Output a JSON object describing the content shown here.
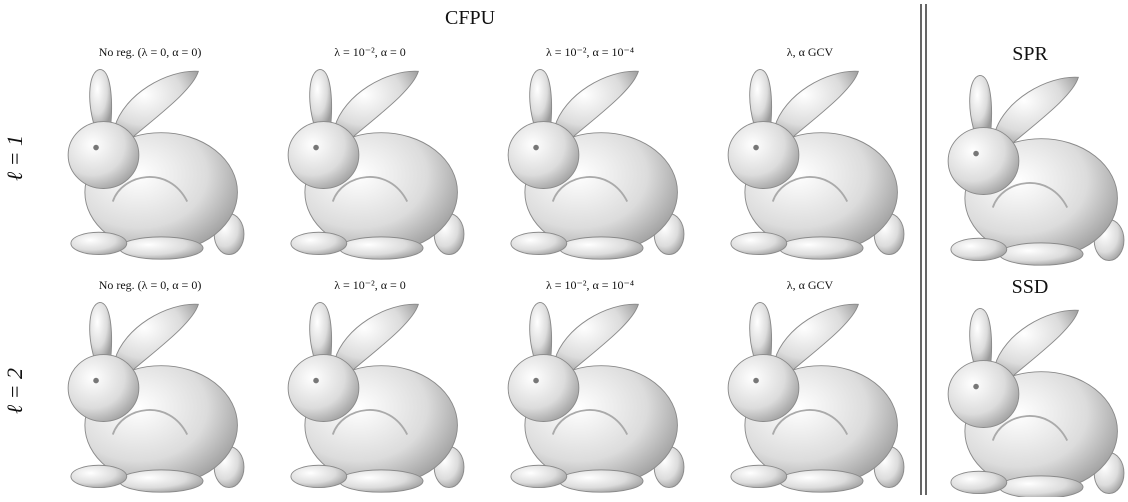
{
  "title": "CFPU",
  "rows": [
    {
      "label": "ℓ = 1",
      "captions": [
        "No reg. (λ = 0, α = 0)",
        "λ = 10⁻², α = 0",
        "λ = 10⁻², α = 10⁻⁴",
        "λ, α GCV"
      ],
      "side_label": "SPR"
    },
    {
      "label": "ℓ = 2",
      "captions": [
        "No reg. (λ = 0, α = 0)",
        "λ = 10⁻², α = 0",
        "λ = 10⁻², α = 10⁻⁴",
        "λ, α GCV"
      ],
      "side_label": "SSD"
    }
  ]
}
